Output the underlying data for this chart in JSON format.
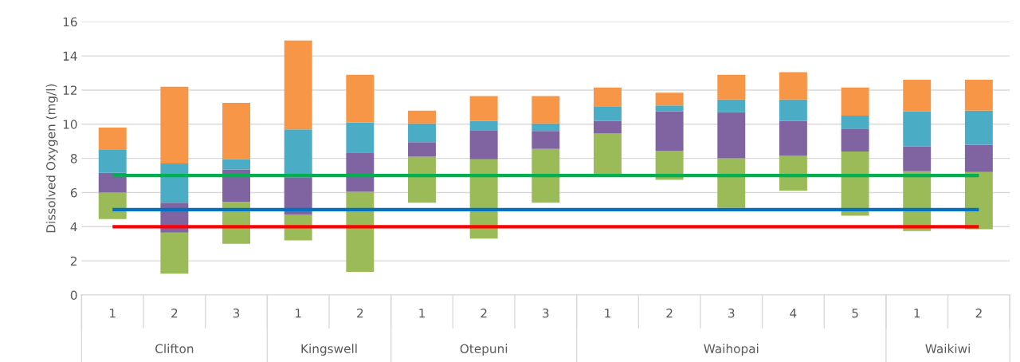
{
  "chart_data": {
    "type": "bar",
    "ylabel": "Dissolved Oxygen (mg/l)",
    "categories": [
      "1",
      "2",
      "3",
      "1",
      "2",
      "1",
      "2",
      "3",
      "1",
      "2",
      "3",
      "4",
      "5",
      "1",
      "2"
    ],
    "annotations": [
      "Clifton",
      "Kingswell",
      "Otepuni",
      "Waihopai",
      "Waikiwi"
    ],
    "series": [
      {
        "color": "#9bbb59",
        "base": [
          4.45,
          1.25,
          3.0,
          3.2,
          1.35,
          5.4,
          3.3,
          5.4,
          7.0,
          6.75,
          5.1,
          6.1,
          4.65,
          3.75,
          3.85
        ],
        "values": [
          1.55,
          2.4,
          2.45,
          1.5,
          4.7,
          2.7,
          4.65,
          3.15,
          2.45,
          1.7,
          2.9,
          2.05,
          3.75,
          3.5,
          3.35
        ]
      },
      {
        "color": "#8064a2",
        "base": [
          6.0,
          3.65,
          5.45,
          4.7,
          6.05,
          8.1,
          7.95,
          8.55,
          9.45,
          8.45,
          8.0,
          8.15,
          8.4,
          7.25,
          7.2
        ],
        "values": [
          1.15,
          1.75,
          1.9,
          2.2,
          2.3,
          0.85,
          1.7,
          1.05,
          0.75,
          2.3,
          2.7,
          2.05,
          1.35,
          1.45,
          1.6
        ]
      },
      {
        "color": "#4bacc6",
        "base": [
          7.15,
          5.4,
          7.35,
          6.9,
          8.35,
          8.95,
          9.65,
          9.6,
          10.2,
          10.75,
          10.7,
          10.2,
          9.75,
          8.7,
          8.8
        ],
        "values": [
          1.35,
          2.3,
          0.6,
          2.8,
          1.75,
          1.1,
          0.55,
          0.45,
          0.85,
          0.35,
          0.75,
          1.25,
          0.75,
          2.05,
          2.0
        ]
      },
      {
        "color": "#f79646",
        "base": [
          8.5,
          7.7,
          7.95,
          9.7,
          10.1,
          10.05,
          10.2,
          10.05,
          11.05,
          11.1,
          11.45,
          11.45,
          10.5,
          10.75,
          10.8
        ],
        "values": [
          1.3,
          4.5,
          3.3,
          5.2,
          2.8,
          0.75,
          1.45,
          1.6,
          1.1,
          0.75,
          1.45,
          1.6,
          1.65,
          1.85,
          1.8
        ]
      }
    ],
    "ref_lines": [
      {
        "axis": "y",
        "value": 7,
        "color": "#00b050"
      },
      {
        "axis": "y",
        "value": 5,
        "color": "#0070c0"
      },
      {
        "axis": "y",
        "value": 4,
        "color": "#ff0000"
      }
    ],
    "ylim": [
      0,
      16
    ],
    "yticks": [
      0,
      2,
      4,
      6,
      8,
      10,
      12,
      14,
      16
    ],
    "grid": "y"
  }
}
